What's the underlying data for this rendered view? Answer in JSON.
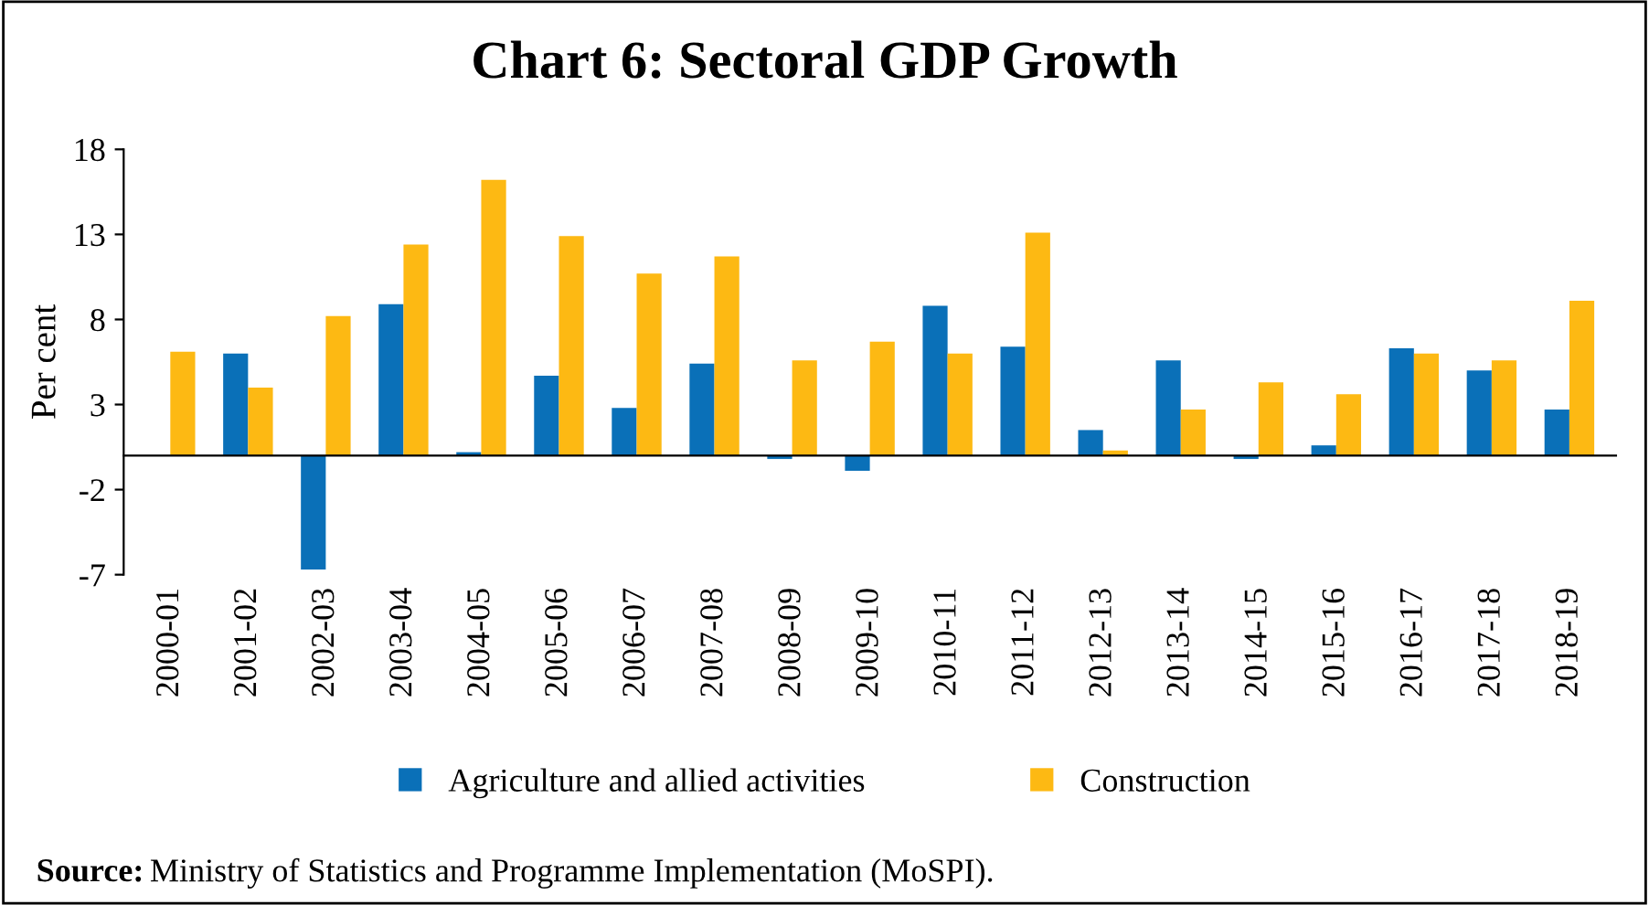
{
  "chart_data": {
    "type": "bar",
    "title": "Chart 6: Sectoral GDP Growth",
    "ylabel": "Per cent",
    "categories": [
      "2000-01",
      "2001-02",
      "2002-03",
      "2003-04",
      "2004-05",
      "2005-06",
      "2006-07",
      "2007-08",
      "2008-09",
      "2009-10",
      "2010-11",
      "2011-12",
      "2012-13",
      "2013-14",
      "2014-15",
      "2015-16",
      "2016-17",
      "2017-18",
      "2018-19"
    ],
    "series": [
      {
        "name": "Agriculture and allied activities",
        "color": "#0a70b8",
        "values": [
          0.0,
          6.0,
          -6.7,
          8.9,
          0.2,
          4.7,
          2.8,
          5.4,
          -0.2,
          -0.9,
          8.8,
          6.4,
          1.5,
          5.6,
          -0.2,
          0.6,
          6.3,
          5.0,
          2.7
        ]
      },
      {
        "name": "Construction",
        "color": "#fdb913",
        "values": [
          6.1,
          4.0,
          8.2,
          12.4,
          16.2,
          12.9,
          10.7,
          11.7,
          5.6,
          6.7,
          6.0,
          13.1,
          0.3,
          2.7,
          4.3,
          3.6,
          6.0,
          5.6,
          9.1
        ]
      }
    ],
    "ylim": [
      -7,
      18
    ],
    "yticks": [
      -7,
      -2,
      3,
      8,
      13,
      18
    ],
    "grid": false,
    "legend": "bottom",
    "annotations": [
      "Source: Ministry of Statistics and Programme Implementation (MoSPI)."
    ]
  }
}
